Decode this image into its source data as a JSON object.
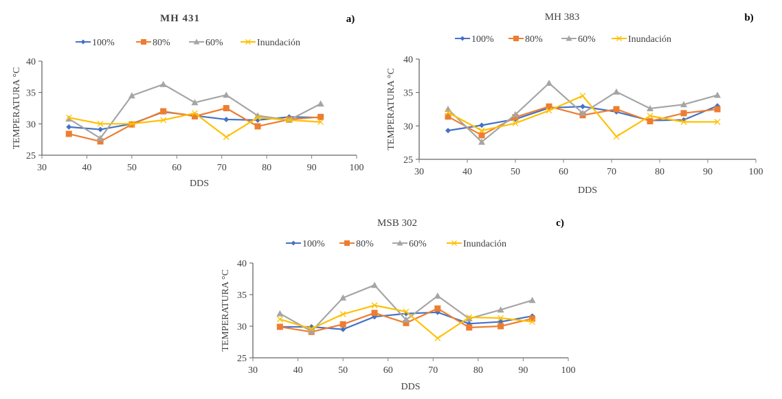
{
  "chart_data": [
    {
      "type": "line",
      "panel_label": "a)",
      "title": "MH 431",
      "title_bold": true,
      "xlabel": "DDS",
      "ylabel": "TEMPERATURA °C",
      "xlim": [
        30,
        100
      ],
      "ylim": [
        25,
        40
      ],
      "xticks": [
        30,
        40,
        50,
        60,
        70,
        80,
        90,
        100
      ],
      "yticks": [
        25,
        30,
        35,
        40
      ],
      "grid": false,
      "legend_position": "top",
      "x": [
        36,
        43,
        50,
        57,
        64,
        71,
        78,
        85,
        92
      ],
      "series": [
        {
          "name": "100%",
          "color": "#4472C4",
          "marker": "diamond",
          "values": [
            29.5,
            29.1,
            30.0,
            31.9,
            31.3,
            30.7,
            30.6,
            31.1,
            31.0
          ]
        },
        {
          "name": "80%",
          "color": "#ED7D31",
          "marker": "square",
          "values": [
            28.4,
            27.2,
            29.9,
            32.0,
            31.2,
            32.5,
            29.6,
            30.7,
            31.1
          ]
        },
        {
          "name": "60%",
          "color": "#A5A5A5",
          "marker": "triangle",
          "values": [
            30.8,
            27.7,
            34.5,
            36.3,
            33.4,
            34.6,
            31.3,
            30.6,
            33.2
          ]
        },
        {
          "name": "Inundación",
          "color": "#FFC000",
          "marker": "x",
          "values": [
            31.0,
            30.0,
            30.0,
            30.6,
            31.7,
            27.9,
            31.0,
            30.6,
            30.3
          ]
        }
      ]
    },
    {
      "type": "line",
      "panel_label": "b)",
      "title": "MH 383",
      "title_bold": false,
      "xlabel": "DDS",
      "ylabel": "TEMPERATURA °C",
      "xlim": [
        30,
        100
      ],
      "ylim": [
        25,
        40
      ],
      "xticks": [
        30,
        40,
        50,
        60,
        70,
        80,
        90,
        100
      ],
      "yticks": [
        25,
        30,
        35,
        40
      ],
      "grid": false,
      "legend_position": "top",
      "x": [
        36,
        43,
        50,
        57,
        64,
        71,
        78,
        85,
        92
      ],
      "series": [
        {
          "name": "100%",
          "color": "#4472C4",
          "marker": "diamond",
          "values": [
            29.3,
            30.1,
            31.0,
            32.7,
            32.9,
            32.1,
            30.8,
            30.9,
            33.0
          ]
        },
        {
          "name": "80%",
          "color": "#ED7D31",
          "marker": "square",
          "values": [
            31.4,
            28.6,
            31.3,
            32.9,
            31.6,
            32.5,
            30.7,
            31.9,
            32.5
          ]
        },
        {
          "name": "60%",
          "color": "#A5A5A5",
          "marker": "triangle",
          "values": [
            32.5,
            27.6,
            31.7,
            36.4,
            31.9,
            35.1,
            32.6,
            33.2,
            34.6
          ]
        },
        {
          "name": "Inundación",
          "color": "#FFC000",
          "marker": "x",
          "values": [
            32.0,
            29.3,
            30.4,
            32.3,
            34.5,
            28.4,
            31.5,
            30.6,
            30.6
          ]
        }
      ]
    },
    {
      "type": "line",
      "panel_label": "c)",
      "title": "MSB 302",
      "title_bold": false,
      "xlabel": "DDS",
      "ylabel": "TEMPERATURA °C",
      "xlim": [
        30,
        100
      ],
      "ylim": [
        25,
        40
      ],
      "xticks": [
        30,
        40,
        50,
        60,
        70,
        80,
        90,
        100
      ],
      "yticks": [
        25,
        30,
        35,
        40
      ],
      "grid": false,
      "legend_position": "top",
      "x": [
        36,
        43,
        50,
        57,
        64,
        71,
        78,
        85,
        92
      ],
      "series": [
        {
          "name": "100%",
          "color": "#4472C4",
          "marker": "diamond",
          "values": [
            29.9,
            29.9,
            29.5,
            31.5,
            32.0,
            32.2,
            30.4,
            30.7,
            31.6
          ]
        },
        {
          "name": "80%",
          "color": "#ED7D31",
          "marker": "square",
          "values": [
            29.9,
            29.1,
            30.3,
            32.1,
            30.5,
            32.8,
            29.8,
            30.0,
            31.2
          ]
        },
        {
          "name": "60%",
          "color": "#A5A5A5",
          "marker": "triangle",
          "values": [
            32.0,
            29.2,
            34.5,
            36.5,
            31.0,
            34.8,
            31.2,
            32.6,
            34.1
          ]
        },
        {
          "name": "Inundación",
          "color": "#FFC000",
          "marker": "x",
          "values": [
            31.1,
            29.6,
            31.9,
            33.3,
            32.3,
            28.1,
            31.4,
            31.3,
            30.7
          ]
        }
      ]
    }
  ]
}
